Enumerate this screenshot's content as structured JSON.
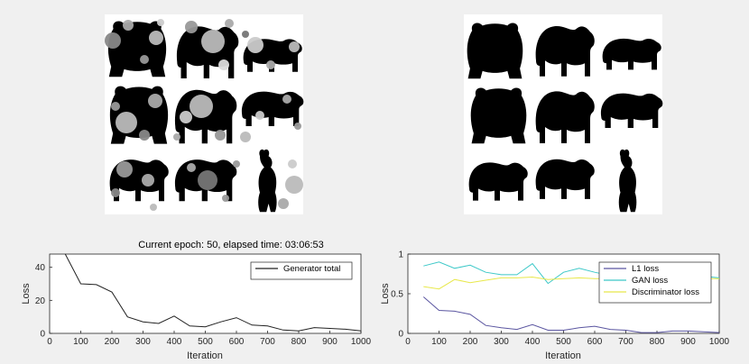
{
  "window": {
    "background": "#f0f0f0"
  },
  "images": {
    "left": {
      "name": "Generated bears with noise blobs"
    },
    "right": {
      "name": "Target bear silhouettes"
    }
  },
  "title_text": "Current epoch: 50, elapsed time: 03:06:53",
  "chart_data": [
    {
      "type": "line",
      "xlabel": "Iteration",
      "ylabel": "Loss",
      "xlim": [
        0,
        1000
      ],
      "ylim": [
        0,
        48
      ],
      "xticks": [
        "0",
        "100",
        "200",
        "300",
        "400",
        "500",
        "600",
        "700",
        "800",
        "900",
        "1000"
      ],
      "yticks": [
        "0",
        "20",
        "40"
      ],
      "legend_position": "top-right",
      "series": [
        {
          "name": "Generator total",
          "color": "#222222",
          "x": [
            50,
            100,
            150,
            200,
            250,
            300,
            350,
            400,
            450,
            500,
            550,
            600,
            650,
            700,
            750,
            800,
            850,
            900,
            950,
            1000
          ],
          "y": [
            48,
            30,
            29.5,
            25,
            10,
            7,
            6,
            10.5,
            4.5,
            4,
            7,
            9.5,
            5,
            4.5,
            2,
            1.5,
            3.5,
            3,
            2.5,
            1.5
          ]
        }
      ]
    },
    {
      "type": "line",
      "xlabel": "Iteration",
      "ylabel": "Loss",
      "xlim": [
        0,
        1000
      ],
      "ylim": [
        0,
        1
      ],
      "xticks": [
        "0",
        "100",
        "200",
        "300",
        "400",
        "500",
        "600",
        "700",
        "800",
        "900",
        "1000"
      ],
      "yticks": [
        "0",
        "0.5",
        "1"
      ],
      "legend_position": "top-right",
      "series": [
        {
          "name": "L1 loss",
          "color": "#5a55a0",
          "x": [
            50,
            100,
            150,
            200,
            250,
            300,
            350,
            400,
            450,
            500,
            550,
            600,
            650,
            700,
            750,
            800,
            850,
            900,
            950,
            1000
          ],
          "y": [
            0.46,
            0.29,
            0.28,
            0.24,
            0.1,
            0.07,
            0.05,
            0.11,
            0.04,
            0.04,
            0.07,
            0.09,
            0.05,
            0.04,
            0.01,
            0.01,
            0.03,
            0.03,
            0.02,
            0.01
          ]
        },
        {
          "name": "GAN loss",
          "color": "#3cc8c8",
          "x": [
            50,
            100,
            150,
            200,
            250,
            300,
            350,
            400,
            450,
            500,
            550,
            600,
            650,
            700,
            750,
            800,
            850,
            900,
            950,
            1000
          ],
          "y": [
            0.85,
            0.9,
            0.82,
            0.86,
            0.77,
            0.74,
            0.74,
            0.88,
            0.63,
            0.77,
            0.82,
            0.77,
            0.73,
            0.75,
            0.74,
            0.73,
            0.75,
            0.75,
            0.72,
            0.7
          ]
        },
        {
          "name": "Discriminator loss",
          "color": "#e8e84a",
          "x": [
            50,
            100,
            150,
            200,
            250,
            300,
            350,
            400,
            450,
            500,
            550,
            600,
            650,
            700,
            750,
            800,
            850,
            900,
            950,
            1000
          ],
          "y": [
            0.59,
            0.56,
            0.68,
            0.64,
            0.67,
            0.7,
            0.7,
            0.71,
            0.68,
            0.69,
            0.7,
            0.69,
            0.69,
            0.69,
            0.69,
            0.69,
            0.69,
            0.69,
            0.69,
            0.69
          ]
        }
      ]
    }
  ]
}
